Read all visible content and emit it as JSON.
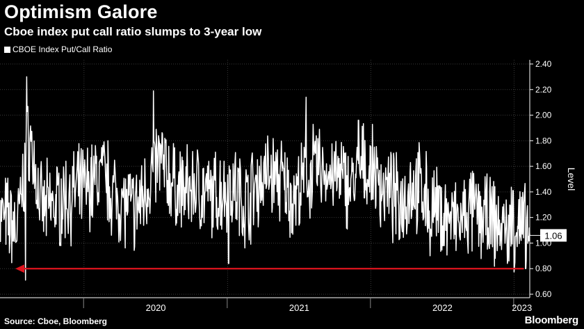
{
  "header": {
    "title": "Optimism Galore",
    "subtitle": "Cboe index put call ratio slumps to 3-year low"
  },
  "footer": {
    "source": "Source: Cboe, Bloomberg",
    "brand": "Bloomberg"
  },
  "chart_data": {
    "type": "line",
    "title": "Optimism Galore",
    "subtitle": "Cboe index put call ratio slumps to 3-year low",
    "ylabel": "Level",
    "ylim": [
      0.6,
      2.4
    ],
    "y_ticks": [
      "0.60",
      "0.80",
      "1.00",
      "1.20",
      "1.40",
      "1.60",
      "1.80",
      "2.00",
      "2.20",
      "2.40"
    ],
    "x_ticks": [
      "2020",
      "2021",
      "2022",
      "2023"
    ],
    "xlim": [
      "2019-06-01",
      "2023-02-10"
    ],
    "grid": true,
    "legend_position": "top-left",
    "colors": {
      "series": "#ffffff",
      "arrow": "#e0141e",
      "grid": "#3a3a3a"
    },
    "last_value_label": "1.06",
    "annotation": {
      "type": "horizontal-arrow",
      "y": 0.8,
      "from": "2023-01-31",
      "to": "2019-07-10"
    },
    "series": [
      {
        "name": "CBOE Index Put/Call Ratio",
        "x": [
          "2019-06",
          "2019-07",
          "2019-08",
          "2019-09",
          "2019-10",
          "2019-11",
          "2019-12",
          "2020-01",
          "2020-02",
          "2020-03",
          "2020-04",
          "2020-05",
          "2020-06",
          "2020-07",
          "2020-08",
          "2020-09",
          "2020-10",
          "2020-11",
          "2020-12",
          "2021-01",
          "2021-02",
          "2021-03",
          "2021-04",
          "2021-05",
          "2021-06",
          "2021-07",
          "2021-08",
          "2021-09",
          "2021-10",
          "2021-11",
          "2021-12",
          "2022-01",
          "2022-02",
          "2022-03",
          "2022-04",
          "2022-05",
          "2022-06",
          "2022-07",
          "2022-08",
          "2022-09",
          "2022-10",
          "2022-11",
          "2022-12",
          "2023-01",
          "2023-02"
        ],
        "y": [
          1.2,
          1.1,
          1.85,
          1.25,
          1.3,
          1.35,
          1.4,
          1.45,
          1.55,
          1.4,
          1.3,
          1.25,
          1.5,
          1.65,
          1.45,
          1.4,
          1.45,
          1.35,
          1.4,
          1.45,
          1.3,
          1.45,
          1.55,
          1.5,
          1.35,
          1.45,
          1.6,
          1.55,
          1.5,
          1.45,
          1.6,
          1.5,
          1.4,
          1.3,
          1.45,
          1.4,
          1.25,
          1.2,
          1.15,
          1.25,
          1.2,
          1.15,
          1.1,
          1.15,
          1.06
        ],
        "spikes": [
          {
            "x": "2019-08-08",
            "y": 2.3
          },
          {
            "x": "2019-08-05",
            "y": 0.71
          },
          {
            "x": "2020-06-26",
            "y": 2.19
          },
          {
            "x": "2021-01-04",
            "y": 0.84
          },
          {
            "x": "2021-07-20",
            "y": 2.14
          },
          {
            "x": "2021-12-01",
            "y": 1.96
          },
          {
            "x": "2022-01-10",
            "y": 1.75
          },
          {
            "x": "2022-06-01",
            "y": 0.9
          },
          {
            "x": "2022-12-30",
            "y": 1.41
          },
          {
            "x": "2023-01-31",
            "y": 0.8
          }
        ]
      }
    ]
  }
}
